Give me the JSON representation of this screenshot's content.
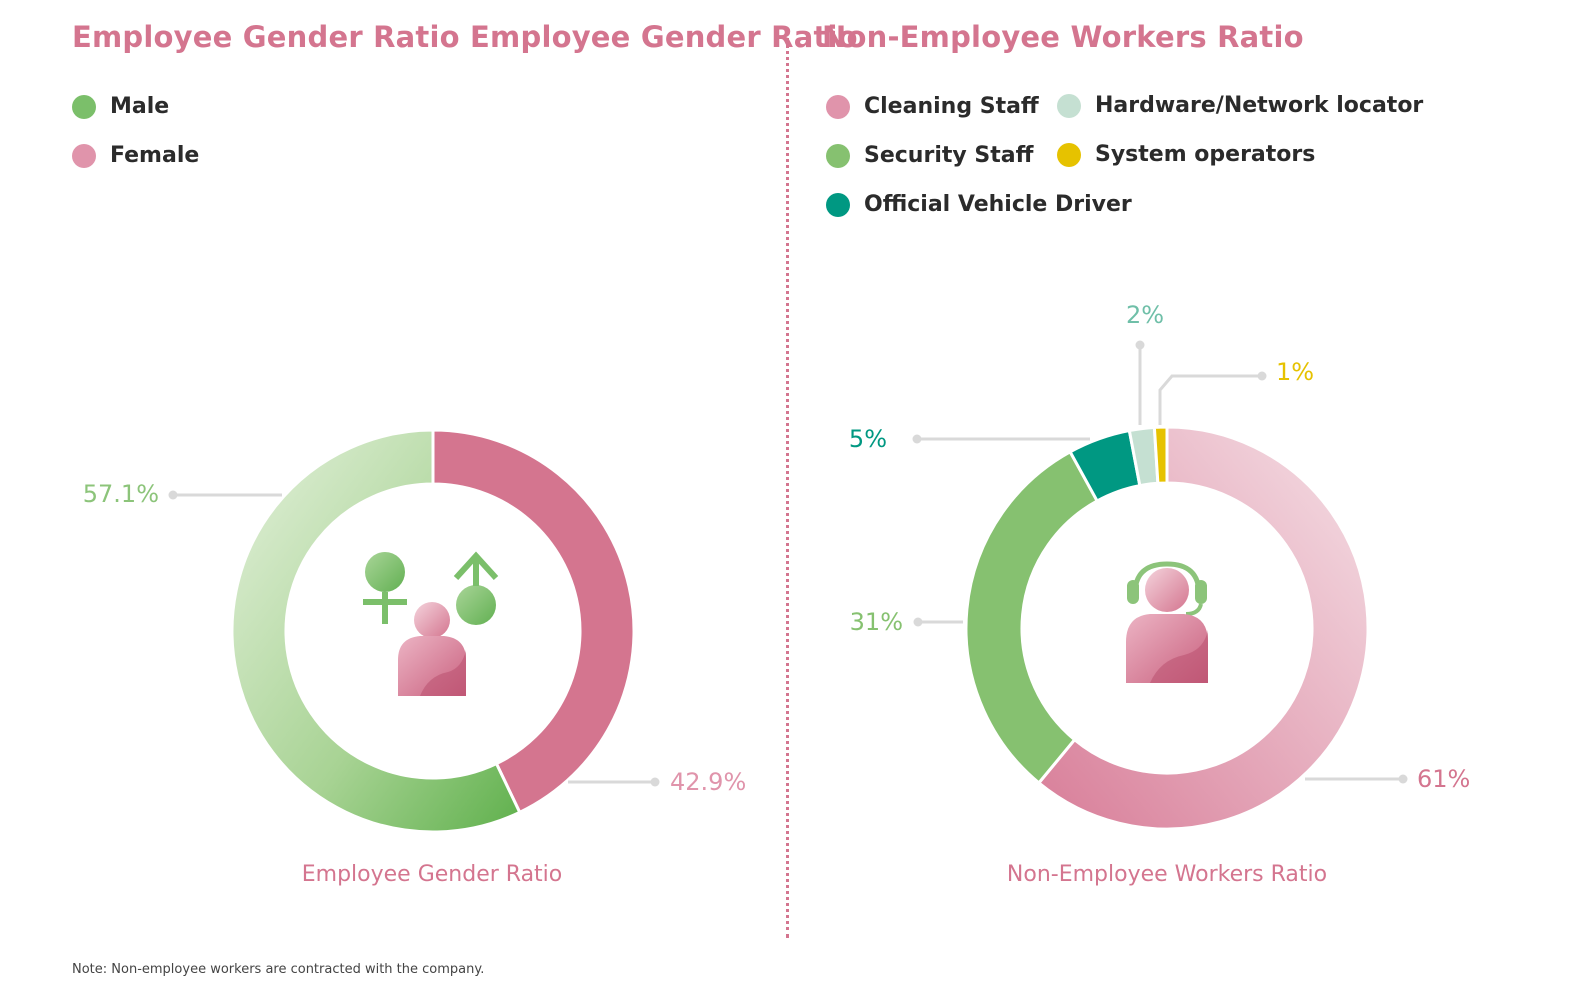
{
  "left_panel": {
    "title": "Employee Gender Ratio Employee Gender Ratio",
    "caption": "Employee Gender Ratio",
    "legend": [
      {
        "label": "Male",
        "color": "#7bbf6a"
      },
      {
        "label": "Female",
        "color": "#e094ab"
      }
    ]
  },
  "right_panel": {
    "title": "Non-Employee Workers Ratio",
    "caption": "Non-Employee Workers Ratio",
    "legend": [
      {
        "label": "Cleaning Staff",
        "color": "#e094ab"
      },
      {
        "label": "Hardware/Network locator",
        "color": "#c5e0d2"
      },
      {
        "label": "Security Staff",
        "color": "#86c170"
      },
      {
        "label": "System operators",
        "color": "#e6c200"
      },
      {
        "label": "Official Vehicle Driver",
        "color": "#009882"
      }
    ]
  },
  "note": "Note: Non-employee workers are contracted with the company.",
  "chart_data": [
    {
      "type": "pie",
      "variant": "donut",
      "title": "Employee Gender Ratio Employee Gender Ratio",
      "caption": "Employee Gender Ratio",
      "categories": [
        "Female",
        "Male"
      ],
      "values": [
        42.9,
        57.1
      ],
      "labels": [
        "42.9%",
        "57.1%"
      ],
      "colors": [
        "#d4758f",
        "#8cc47a"
      ],
      "label_colors": [
        "#e094ab",
        "#8cc47a"
      ],
      "center_icon": "gender-person-icon",
      "legend_position": "top-left"
    },
    {
      "type": "pie",
      "variant": "donut",
      "title": "Non-Employee Workers Ratio",
      "caption": "Non-Employee Workers Ratio",
      "categories": [
        "Cleaning Staff",
        "Security Staff",
        "Official Vehicle Driver",
        "Hardware/Network locator",
        "System operators"
      ],
      "values": [
        61,
        31,
        5,
        2,
        1
      ],
      "labels": [
        "61%",
        "31%",
        "5%",
        "2%",
        "1%"
      ],
      "colors": [
        "#e8a7ba",
        "#86c170",
        "#009882",
        "#c5e0d2",
        "#e6c200"
      ],
      "label_colors": [
        "#d4758f",
        "#86c170",
        "#009882",
        "#6fbfa8",
        "#e6c200"
      ],
      "center_icon": "support-agent-icon",
      "legend_position": "top-left"
    }
  ]
}
